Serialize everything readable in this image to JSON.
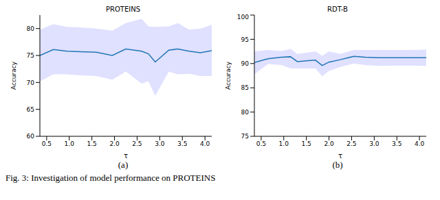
{
  "caption": "Fig. 3: Investigation of model performance on PROTEINS",
  "chart_data": [
    {
      "type": "line",
      "title": "PROTEINS",
      "label": "(a)",
      "x_label": "τ",
      "y_label": "Accuracy",
      "color": "#1f77b4",
      "x": [
        0.35,
        0.65,
        0.95,
        1.25,
        1.6,
        1.95,
        2.25,
        2.6,
        2.75,
        2.9,
        3.2,
        3.4,
        3.65,
        3.9,
        4.15
      ],
      "values": [
        75.0,
        76.1,
        75.8,
        75.7,
        75.6,
        75.0,
        76.2,
        75.8,
        75.3,
        73.8,
        76.0,
        76.2,
        75.8,
        75.5,
        75.9
      ],
      "band": {
        "lower": [
          70.2,
          71.5,
          71.5,
          71.3,
          71.2,
          70.5,
          72.0,
          69.8,
          70.2,
          67.5,
          72.0,
          71.5,
          71.6,
          71.2,
          71.2
        ],
        "upper": [
          79.8,
          80.8,
          80.3,
          80.2,
          80.0,
          79.6,
          81.0,
          81.8,
          80.4,
          80.3,
          80.4,
          81.0,
          79.8,
          80.0,
          80.7
        ]
      },
      "xlim": [
        0.35,
        4.15
      ],
      "xticks": [
        0.5,
        {
          "value": 1,
          "label": "1.0"
        },
        1.5,
        {
          "value": 2,
          "label": "2.0"
        },
        2.5,
        {
          "value": 3,
          "label": "3.0"
        },
        3.5,
        {
          "value": 4,
          "label": "4.0"
        }
      ],
      "ylim": [
        60,
        82.5
      ],
      "yticks": [
        60,
        65,
        70,
        75,
        80
      ]
    },
    {
      "type": "line",
      "title": "RDT-B",
      "label": "(b)",
      "x_label": "τ",
      "y_label": "Accuracy",
      "color": "#1f77b4",
      "x": [
        0.35,
        0.65,
        0.95,
        1.15,
        1.3,
        1.55,
        1.7,
        1.85,
        2.0,
        2.25,
        2.55,
        2.8,
        3.1,
        3.5,
        3.85,
        4.15
      ],
      "values": [
        90.2,
        91.0,
        91.3,
        91.4,
        90.4,
        90.6,
        90.7,
        89.6,
        90.3,
        90.8,
        91.5,
        91.3,
        91.2,
        91.2,
        91.2,
        91.2
      ],
      "band": {
        "lower": [
          87.8,
          89.9,
          89.7,
          89.0,
          89.0,
          89.0,
          89.0,
          87.4,
          88.5,
          89.3,
          90.0,
          89.7,
          89.5,
          89.6,
          89.6,
          89.5
        ],
        "upper": [
          92.5,
          92.8,
          92.6,
          93.0,
          92.0,
          92.3,
          92.5,
          91.6,
          92.5,
          92.0,
          92.8,
          92.8,
          92.8,
          92.8,
          92.8,
          92.9
        ]
      },
      "xlim": [
        0.35,
        4.15
      ],
      "xticks": [
        0.5,
        {
          "value": 1,
          "label": "1.0"
        },
        1.5,
        {
          "value": 2,
          "label": "2.0"
        },
        2.5,
        {
          "value": 3,
          "label": "3.0"
        },
        3.5,
        {
          "value": 4,
          "label": "4.0"
        }
      ],
      "ylim": [
        75,
        100
      ],
      "yticks": [
        75,
        80,
        85,
        90,
        95,
        100
      ]
    }
  ]
}
